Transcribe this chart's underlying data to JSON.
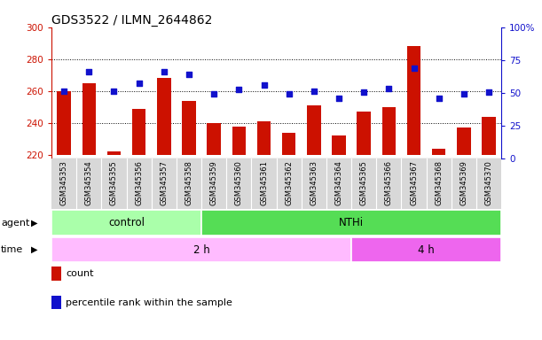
{
  "title": "GDS3522 / ILMN_2644862",
  "samples": [
    "GSM345353",
    "GSM345354",
    "GSM345355",
    "GSM345356",
    "GSM345357",
    "GSM345358",
    "GSM345359",
    "GSM345360",
    "GSM345361",
    "GSM345362",
    "GSM345363",
    "GSM345364",
    "GSM345365",
    "GSM345366",
    "GSM345367",
    "GSM345368",
    "GSM345369",
    "GSM345370"
  ],
  "counts": [
    260,
    265,
    222,
    249,
    268,
    254,
    240,
    238,
    241,
    234,
    251,
    232,
    247,
    250,
    288,
    224,
    237,
    244
  ],
  "percentile": [
    50,
    65,
    50,
    56,
    65,
    63,
    48,
    51,
    55,
    48,
    50,
    44,
    49,
    52,
    68,
    44,
    48,
    49
  ],
  "ylim_left": [
    218,
    300
  ],
  "ylim_right": [
    0,
    100
  ],
  "yticks_left": [
    220,
    240,
    260,
    280,
    300
  ],
  "yticks_right": [
    0,
    25,
    50,
    75,
    100
  ],
  "yticklabels_right": [
    "0",
    "25",
    "50",
    "75",
    "100%"
  ],
  "agent_groups": [
    {
      "label": "control",
      "start": 0,
      "end": 5,
      "color": "#AAFFAA"
    },
    {
      "label": "NTHi",
      "start": 6,
      "end": 17,
      "color": "#55DD55"
    }
  ],
  "time_groups": [
    {
      "label": "2 h",
      "start": 0,
      "end": 11,
      "color": "#FFBBFF"
    },
    {
      "label": "4 h",
      "start": 12,
      "end": 17,
      "color": "#EE66EE"
    }
  ],
  "bar_color": "#CC1100",
  "dot_color": "#1111CC",
  "bar_width": 0.55,
  "baseline": 220,
  "title_fontsize": 10,
  "tick_fontsize": 7.5,
  "sample_fontsize": 6,
  "row_label_fontsize": 8,
  "legend_fontsize": 8,
  "n_control": 6,
  "n_2h": 12
}
